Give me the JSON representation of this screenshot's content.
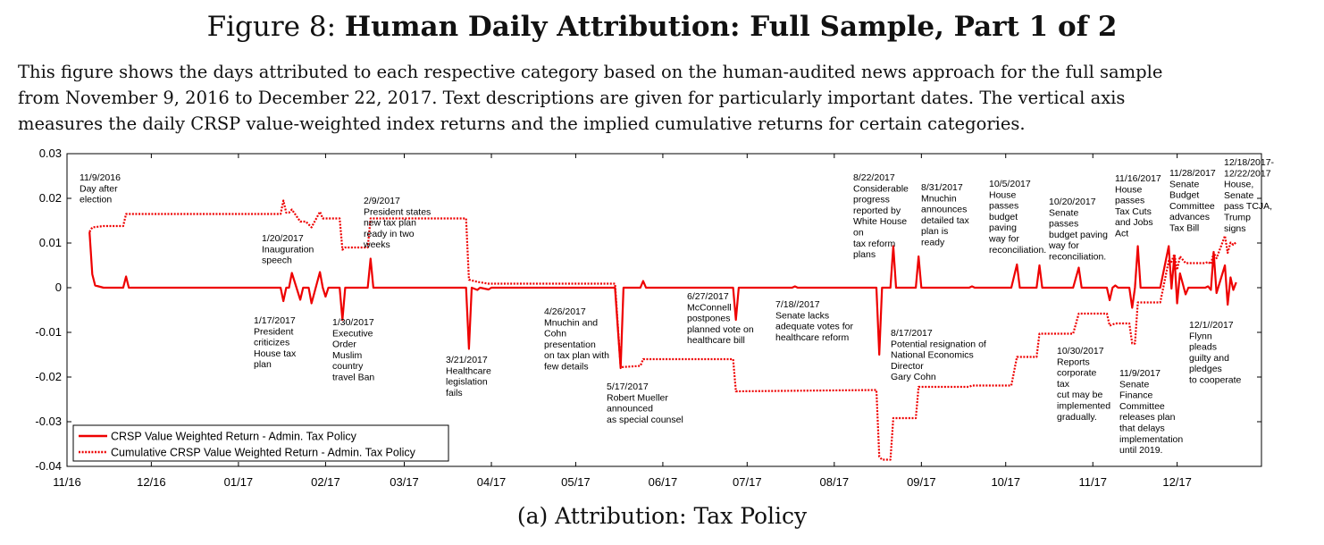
{
  "figure": {
    "label": "Figure 8:",
    "title": "Human Daily Attribution: Full Sample, Part 1 of 2",
    "caption_lines": [
      "This figure shows the days attributed to each respective category based on the human-audited news approach for the full sample",
      "from November 9, 2016 to December 22, 2017. Text descriptions are given for particularly important dates. The vertical axis",
      "measures the daily CRSP value-weighted index returns and the implied cumulative returns for certain categories."
    ],
    "subcaption": "(a) Attribution: Tax Policy"
  },
  "chart_data": {
    "type": "line",
    "x_range": [
      "2016-11-01",
      "2017-12-31"
    ],
    "ylim": [
      -0.04,
      0.03
    ],
    "y_ticks": [
      "0.03",
      "0.02",
      "0.01",
      "0",
      "-0.01",
      "-0.02",
      "-0.03",
      "-0.04"
    ],
    "x_ticks": [
      {
        "date": "2016-11-01",
        "label": "11/16"
      },
      {
        "date": "2016-12-01",
        "label": "12/16"
      },
      {
        "date": "2017-01-01",
        "label": "01/17"
      },
      {
        "date": "2017-02-01",
        "label": "02/17"
      },
      {
        "date": "2017-03-01",
        "label": "03/17"
      },
      {
        "date": "2017-04-01",
        "label": "04/17"
      },
      {
        "date": "2017-05-01",
        "label": "05/17"
      },
      {
        "date": "2017-06-01",
        "label": "06/17"
      },
      {
        "date": "2017-07-01",
        "label": "07/17"
      },
      {
        "date": "2017-08-01",
        "label": "08/17"
      },
      {
        "date": "2017-09-01",
        "label": "09/17"
      },
      {
        "date": "2017-10-01",
        "label": "10/17"
      },
      {
        "date": "2017-11-01",
        "label": "11/17"
      },
      {
        "date": "2017-12-01",
        "label": "12/17"
      }
    ],
    "grid": false,
    "legend_position": "bottom-left",
    "color": "#ee0000",
    "series": [
      {
        "name": "CRSP Value Weighted Return - Admin. Tax Policy",
        "style": "solid",
        "points": [
          [
            "2016-11-09",
            0.0125
          ],
          [
            "2016-11-10",
            0.003
          ],
          [
            "2016-11-11",
            0.0005
          ],
          [
            "2016-11-14",
            0
          ],
          [
            "2016-11-21",
            0
          ],
          [
            "2016-11-22",
            0.0025
          ],
          [
            "2016-11-23",
            0
          ],
          [
            "2017-01-16",
            0
          ],
          [
            "2017-01-17",
            -0.003
          ],
          [
            "2017-01-18",
            0
          ],
          [
            "2017-01-19",
            0
          ],
          [
            "2017-01-20",
            0.0033
          ],
          [
            "2017-01-23",
            -0.0027
          ],
          [
            "2017-01-24",
            0
          ],
          [
            "2017-01-26",
            0
          ],
          [
            "2017-01-27",
            -0.0035
          ],
          [
            "2017-01-30",
            0.0035
          ],
          [
            "2017-01-31",
            0
          ],
          [
            "2017-02-01",
            -0.002
          ],
          [
            "2017-02-02",
            0
          ],
          [
            "2017-02-06",
            0
          ],
          [
            "2017-02-07",
            -0.0072
          ],
          [
            "2017-02-08",
            0
          ],
          [
            "2017-02-16",
            0
          ],
          [
            "2017-02-17",
            0.0065
          ],
          [
            "2017-02-18",
            0
          ],
          [
            "2017-03-23",
            0
          ],
          [
            "2017-03-24",
            -0.0137
          ],
          [
            "2017-03-25",
            0
          ],
          [
            "2017-03-27",
            -0.0005
          ],
          [
            "2017-03-28",
            0
          ],
          [
            "2017-03-31",
            -0.0004
          ],
          [
            "2017-04-01",
            0
          ],
          [
            "2017-05-15",
            0
          ],
          [
            "2017-05-17",
            -0.018
          ],
          [
            "2017-05-18",
            0
          ],
          [
            "2017-05-24",
            0
          ],
          [
            "2017-05-25",
            0.0015
          ],
          [
            "2017-05-26",
            0
          ],
          [
            "2017-06-26",
            0
          ],
          [
            "2017-06-27",
            -0.0072
          ],
          [
            "2017-06-28",
            0
          ],
          [
            "2017-07-17",
            0
          ],
          [
            "2017-07-18",
            0.0003
          ],
          [
            "2017-07-19",
            0
          ],
          [
            "2017-08-16",
            0
          ],
          [
            "2017-08-17",
            -0.015
          ],
          [
            "2017-08-18",
            0
          ],
          [
            "2017-08-21",
            0
          ],
          [
            "2017-08-22",
            0.0093
          ],
          [
            "2017-08-23",
            0
          ],
          [
            "2017-08-30",
            0
          ],
          [
            "2017-08-31",
            0.007
          ],
          [
            "2017-09-01",
            0
          ],
          [
            "2017-09-18",
            0
          ],
          [
            "2017-09-19",
            0.0003
          ],
          [
            "2017-09-20",
            0
          ],
          [
            "2017-10-03",
            0
          ],
          [
            "2017-10-05",
            0.0052
          ],
          [
            "2017-10-06",
            0
          ],
          [
            "2017-10-12",
            0
          ],
          [
            "2017-10-13",
            0.005
          ],
          [
            "2017-10-14",
            0
          ],
          [
            "2017-10-25",
            0
          ],
          [
            "2017-10-27",
            0.0045
          ],
          [
            "2017-10-28",
            0
          ],
          [
            "2017-11-06",
            0
          ],
          [
            "2017-11-07",
            -0.0028
          ],
          [
            "2017-11-08",
            0
          ],
          [
            "2017-11-09",
            0.0005
          ],
          [
            "2017-11-10",
            0
          ],
          [
            "2017-11-14",
            0
          ],
          [
            "2017-11-15",
            -0.0045
          ],
          [
            "2017-11-16",
            0
          ],
          [
            "2017-11-17",
            0.0093
          ],
          [
            "2017-11-18",
            0
          ],
          [
            "2017-11-25",
            0
          ],
          [
            "2017-11-28",
            0.0093
          ],
          [
            "2017-11-29",
            -0.0002
          ],
          [
            "2017-11-30",
            0.0072
          ],
          [
            "2017-12-01",
            -0.0035
          ],
          [
            "2017-12-02",
            0.0032
          ],
          [
            "2017-12-04",
            -0.0015
          ],
          [
            "2017-12-05",
            0
          ],
          [
            "2017-12-11",
            0
          ],
          [
            "2017-12-12",
            0.0003
          ],
          [
            "2017-12-13",
            -0.0005
          ],
          [
            "2017-12-14",
            0.008
          ],
          [
            "2017-12-15",
            -0.0012
          ],
          [
            "2017-12-18",
            0.005
          ],
          [
            "2017-12-19",
            -0.0038
          ],
          [
            "2017-12-20",
            0.0023
          ],
          [
            "2017-12-21",
            -0.0005
          ],
          [
            "2017-12-22",
            0.0012
          ]
        ]
      },
      {
        "name": "Cumulative CRSP Value Weighted Return - Admin. Tax Policy",
        "style": "dotted",
        "points": [
          [
            "2016-11-09",
            0.0125
          ],
          [
            "2016-11-10",
            0.0135
          ],
          [
            "2016-11-14",
            0.0138
          ],
          [
            "2016-11-21",
            0.0138
          ],
          [
            "2016-11-22",
            0.0165
          ],
          [
            "2017-01-16",
            0.0165
          ],
          [
            "2017-01-17",
            0.0195
          ],
          [
            "2017-01-18",
            0.0168
          ],
          [
            "2017-01-19",
            0.0168
          ],
          [
            "2017-01-20",
            0.0175
          ],
          [
            "2017-01-23",
            0.0148
          ],
          [
            "2017-01-25",
            0.0148
          ],
          [
            "2017-01-27",
            0.0135
          ],
          [
            "2017-01-30",
            0.017
          ],
          [
            "2017-01-31",
            0.0155
          ],
          [
            "2017-02-06",
            0.0155
          ],
          [
            "2017-02-07",
            0.0085
          ],
          [
            "2017-02-08",
            0.009
          ],
          [
            "2017-02-16",
            0.009
          ],
          [
            "2017-02-17",
            0.0155
          ],
          [
            "2017-03-23",
            0.0155
          ],
          [
            "2017-03-24",
            0.0018
          ],
          [
            "2017-03-27",
            0.0013
          ],
          [
            "2017-03-31",
            0.0009
          ],
          [
            "2017-05-15",
            0.0009
          ],
          [
            "2017-05-17",
            -0.0178
          ],
          [
            "2017-05-24",
            -0.0175
          ],
          [
            "2017-05-25",
            -0.016
          ],
          [
            "2017-06-26",
            -0.016
          ],
          [
            "2017-06-27",
            -0.0232
          ],
          [
            "2017-08-16",
            -0.0229
          ],
          [
            "2017-08-17",
            -0.0378
          ],
          [
            "2017-08-18",
            -0.0385
          ],
          [
            "2017-08-21",
            -0.0385
          ],
          [
            "2017-08-22",
            -0.0292
          ],
          [
            "2017-08-30",
            -0.0292
          ],
          [
            "2017-08-31",
            -0.0222
          ],
          [
            "2017-09-18",
            -0.0222
          ],
          [
            "2017-09-19",
            -0.0219
          ],
          [
            "2017-10-03",
            -0.0219
          ],
          [
            "2017-10-05",
            -0.0155
          ],
          [
            "2017-10-12",
            -0.0155
          ],
          [
            "2017-10-13",
            -0.0103
          ],
          [
            "2017-10-25",
            -0.0103
          ],
          [
            "2017-10-27",
            -0.0058
          ],
          [
            "2017-11-06",
            -0.0058
          ],
          [
            "2017-11-07",
            -0.0085
          ],
          [
            "2017-11-09",
            -0.008
          ],
          [
            "2017-11-14",
            -0.008
          ],
          [
            "2017-11-15",
            -0.0125
          ],
          [
            "2017-11-16",
            -0.0125
          ],
          [
            "2017-11-17",
            -0.0033
          ],
          [
            "2017-11-25",
            -0.0033
          ],
          [
            "2017-11-28",
            0.006
          ],
          [
            "2017-11-29",
            0.0058
          ],
          [
            "2017-11-30",
            0.0075
          ],
          [
            "2017-12-01",
            0.004
          ],
          [
            "2017-12-02",
            0.007
          ],
          [
            "2017-12-04",
            0.0055
          ],
          [
            "2017-12-11",
            0.0055
          ],
          [
            "2017-12-12",
            0.0058
          ],
          [
            "2017-12-13",
            0.0053
          ],
          [
            "2017-12-14",
            0.0078
          ],
          [
            "2017-12-15",
            0.0066
          ],
          [
            "2017-12-18",
            0.0116
          ],
          [
            "2017-12-19",
            0.0078
          ],
          [
            "2017-12-20",
            0.0101
          ],
          [
            "2017-12-21",
            0.0096
          ],
          [
            "2017-12-22",
            0.0102
          ]
        ]
      }
    ],
    "annotations": [
      {
        "lines": [
          "11/9/2016",
          "Day after",
          "election"
        ],
        "pos": [
          89,
          202
        ]
      },
      {
        "lines": [
          "1/20/2017",
          "Inauguration",
          "speech"
        ],
        "pos": [
          293,
          270
        ]
      },
      {
        "lines": [
          "2/9/2017",
          "President states",
          "new tax plan",
          "ready in two",
          "weeks"
        ],
        "pos": [
          407,
          228
        ]
      },
      {
        "lines": [
          "1/17/2017",
          "President",
          "criticizes",
          "House tax",
          "plan"
        ],
        "pos": [
          284,
          362
        ]
      },
      {
        "lines": [
          "1/30/2017",
          "Executive",
          "Order",
          "Muslim",
          "country",
          "travel Ban"
        ],
        "pos": [
          372,
          364
        ]
      },
      {
        "lines": [
          "3/21/2017",
          "Healthcare",
          "legislation",
          "fails"
        ],
        "pos": [
          499,
          406
        ]
      },
      {
        "lines": [
          "4/26/2017",
          "Mnuchin and",
          "Cohn",
          "presentation",
          "on tax plan with",
          "few details"
        ],
        "pos": [
          609,
          352
        ]
      },
      {
        "lines": [
          "5/17/2017",
          "Robert Mueller",
          "announced",
          "as special counsel"
        ],
        "pos": [
          679,
          436
        ]
      },
      {
        "lines": [
          "6/27/2017",
          "McConnell",
          "postpones",
          "planned vote on",
          "healthcare bill"
        ],
        "pos": [
          769,
          335
        ]
      },
      {
        "lines": [
          "7/18//2017",
          "Senate lacks",
          "adequate votes for",
          "healthcare reform"
        ],
        "pos": [
          868,
          344
        ]
      },
      {
        "lines": [
          "8/22/2017",
          "Considerable",
          "progress",
          "reported by",
          "White House",
          "on",
          "tax reform",
          "plans"
        ],
        "pos": [
          955,
          202
        ]
      },
      {
        "lines": [
          "8/31/2017",
          "Mnuchin",
          "announces",
          "detailed tax",
          "plan is",
          "ready"
        ],
        "pos": [
          1031,
          213
        ]
      },
      {
        "lines": [
          "8/17/2017",
          "Potential resignation of",
          "National Economics",
          "Director",
          "Gary Cohn"
        ],
        "pos": [
          997,
          376
        ]
      },
      {
        "lines": [
          "10/5/2017",
          "House",
          "passes",
          "budget",
          "paving",
          "way for",
          "reconciliation."
        ],
        "pos": [
          1107,
          209
        ]
      },
      {
        "lines": [
          "10/20/2017",
          "Senate",
          "passes",
          "budget paving",
          "way for",
          "reconciliation."
        ],
        "pos": [
          1174,
          229
        ]
      },
      {
        "lines": [
          "10/30/2017",
          "Reports",
          "corporate",
          "tax",
          "cut may be",
          "implemented",
          "gradually."
        ],
        "pos": [
          1183,
          396
        ]
      },
      {
        "lines": [
          "11/16/2017",
          "House",
          "passes",
          "Tax Cuts",
          "and Jobs",
          "Act"
        ],
        "pos": [
          1248,
          203
        ]
      },
      {
        "lines": [
          "11/9/2017",
          "Senate",
          "Finance",
          "Committee",
          "releases plan",
          "that delays",
          "implementation",
          "until 2019."
        ],
        "pos": [
          1253,
          421
        ]
      },
      {
        "lines": [
          "11/28/2017",
          "Senate",
          "Budget",
          "Committee",
          "advances",
          "Tax Bill"
        ],
        "pos": [
          1309,
          197
        ]
      },
      {
        "lines": [
          "12/18/2017-",
          "12/22/2017",
          "House,",
          "Senate",
          "pass TCJA,",
          "Trump",
          "signs"
        ],
        "pos": [
          1370,
          185
        ]
      },
      {
        "lines": [
          "12/1//2017",
          "Flynn",
          "pleads",
          "guilty and",
          "pledges",
          "to cooperate"
        ],
        "pos": [
          1331,
          367
        ]
      }
    ]
  }
}
